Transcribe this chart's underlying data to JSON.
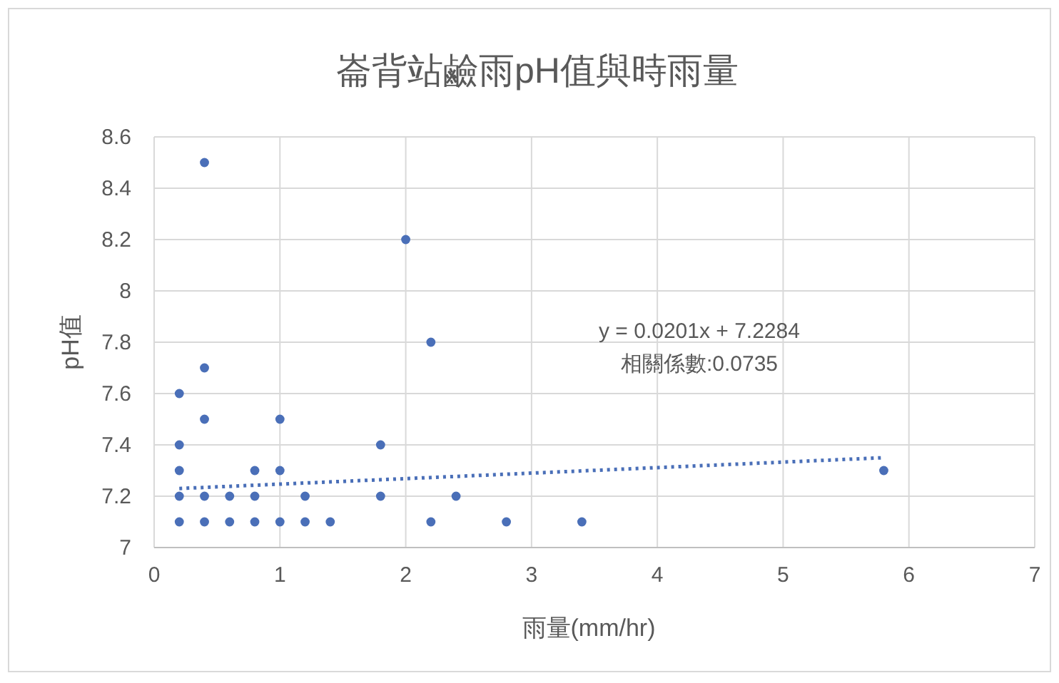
{
  "chart_data": {
    "type": "scatter",
    "title": "崙背站鹼雨pH值與時雨量",
    "xlabel": "雨量(mm/hr)",
    "ylabel": "pH值",
    "xlim": [
      0,
      7
    ],
    "xticks": [
      0,
      1,
      2,
      3,
      4,
      5,
      6,
      7
    ],
    "ylim": [
      7,
      8.6
    ],
    "yticks": [
      7,
      7.2,
      7.4,
      7.6,
      7.8,
      8,
      8.2,
      8.4,
      8.6
    ],
    "grid": true,
    "marker": "circle",
    "series": [
      {
        "color": "#4a6fb8",
        "x": [
          0.2,
          0.2,
          0.2,
          0.2,
          0.2,
          0.4,
          0.4,
          0.4,
          0.4,
          0.4,
          0.6,
          0.6,
          0.8,
          0.8,
          0.8,
          1.0,
          1.0,
          1.0,
          1.2,
          1.2,
          1.4,
          1.8,
          1.8,
          2.0,
          2.2,
          2.2,
          2.4,
          2.8,
          3.4,
          5.8
        ],
        "values": [
          7.6,
          7.4,
          7.3,
          7.2,
          7.1,
          8.5,
          7.7,
          7.5,
          7.2,
          7.1,
          7.2,
          7.1,
          7.3,
          7.2,
          7.1,
          7.5,
          7.3,
          7.1,
          7.2,
          7.1,
          7.1,
          7.4,
          7.2,
          8.2,
          7.8,
          7.1,
          7.2,
          7.1,
          7.1,
          7.3
        ]
      },
      {
        "type": "line",
        "color": "#4a6fb8",
        "line_style": "dotted",
        "marker": "none",
        "x": [
          0.2,
          5.8
        ],
        "values": [
          7.23,
          7.35
        ]
      }
    ],
    "annotations": [
      "y = 0.0201x + 7.2284",
      "相關係數:0.0735"
    ]
  }
}
